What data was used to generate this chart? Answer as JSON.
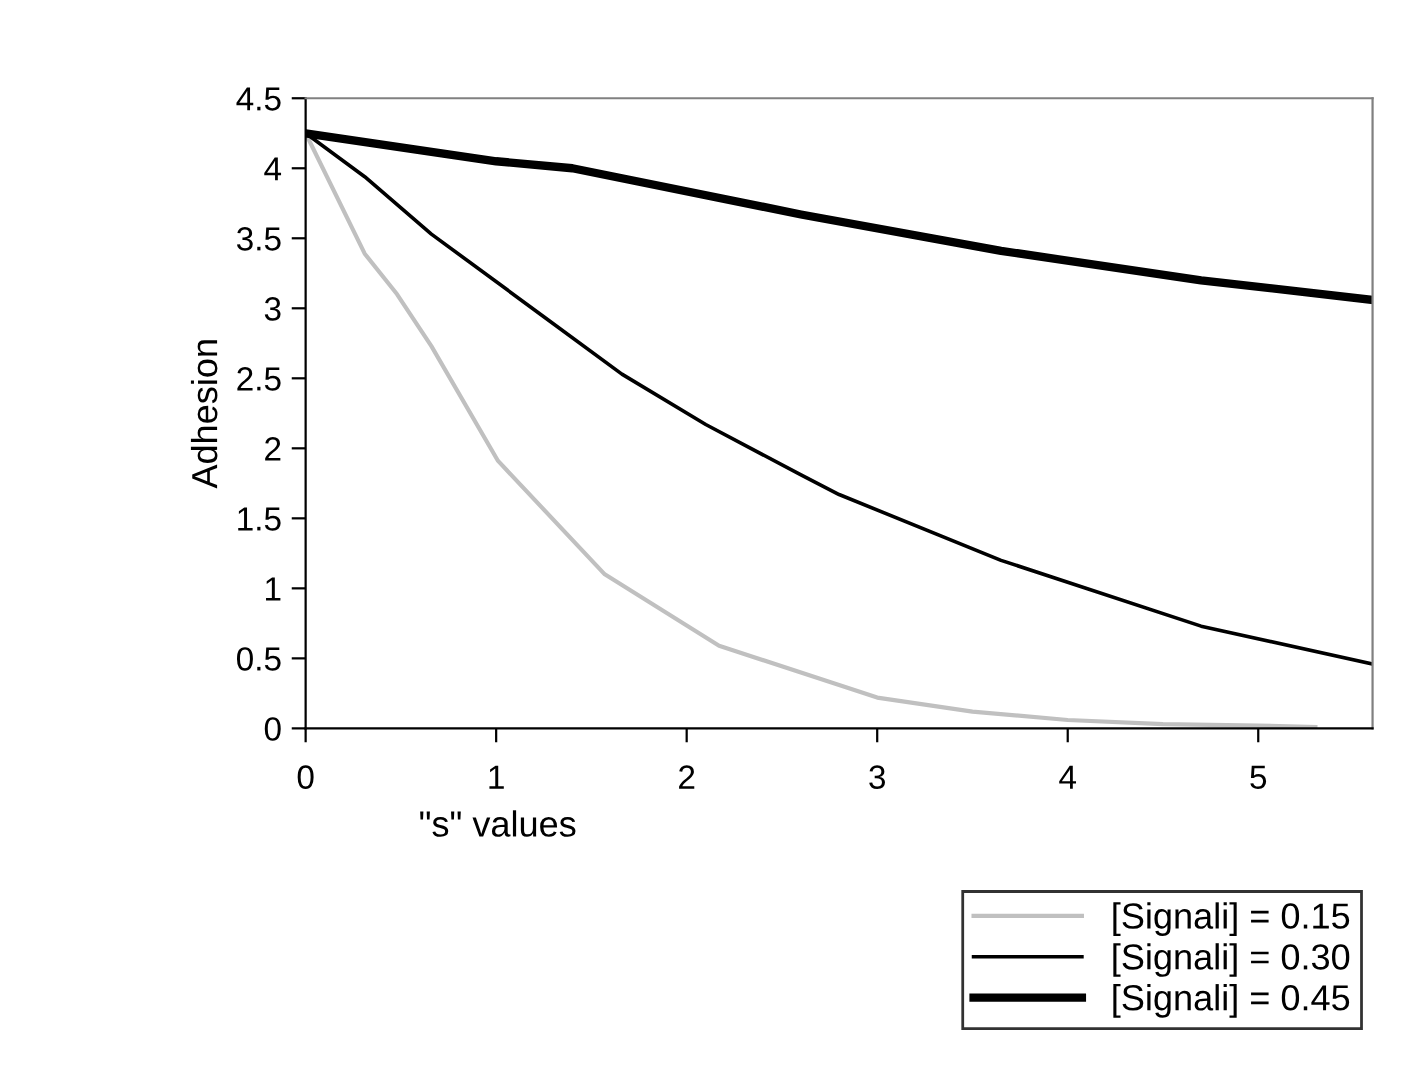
{
  "chart_data": {
    "type": "line",
    "xlabel": "\"s\" values",
    "ylabel": "Adhesion",
    "xlim": [
      0,
      5.6
    ],
    "xticks": [
      0,
      1,
      2,
      3,
      4,
      5
    ],
    "ylim": [
      0,
      4.5
    ],
    "yticks": [
      0,
      0.5,
      1,
      1.5,
      2,
      2.5,
      3,
      3.5,
      4,
      4.5
    ],
    "grid": false,
    "legend": "bottom right",
    "marker": "none",
    "line_style": "solid",
    "series": [
      {
        "name": "[Signali] = 0.15",
        "color": "#c0c0c0",
        "x": [
          0,
          0.31,
          0.48,
          0.66,
          1.01,
          1.57,
          2.17,
          2.8,
          3,
          3.5,
          4,
          4.5,
          5,
          5.3
        ],
        "values": [
          4.25,
          3.39,
          3.1,
          2.73,
          1.91,
          1.1,
          0.59,
          0.31,
          0.22,
          0.12,
          0.06,
          0.03,
          0.02,
          0.01
        ]
      },
      {
        "name": "[Signali] = 0.30",
        "color": "#000000",
        "x": [
          0,
          0.31,
          0.66,
          1.25,
          1.66,
          2.1,
          2.6,
          2.8,
          3.65,
          4.7,
          5.6
        ],
        "values": [
          4.25,
          3.94,
          3.53,
          2.94,
          2.53,
          2.17,
          1.81,
          1.67,
          1.2,
          0.73,
          0.46
        ]
      },
      {
        "name": "[Signali] = 0.45",
        "color": "#000000",
        "x": [
          0,
          1,
          1.4,
          2.6,
          3.65,
          4.7,
          5.6
        ],
        "values": [
          4.25,
          4.05,
          4.0,
          3.67,
          3.41,
          3.2,
          3.06
        ]
      }
    ]
  }
}
